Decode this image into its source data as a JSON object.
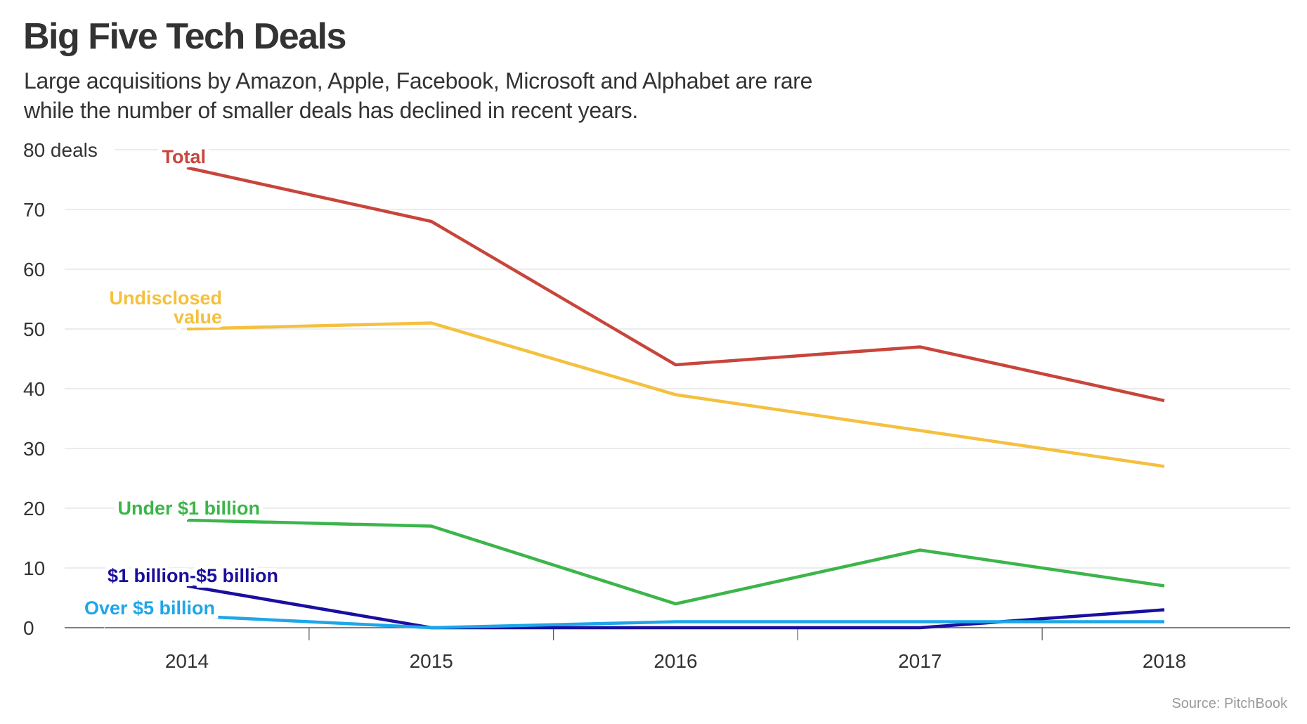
{
  "header": {
    "title": "Big Five Tech Deals",
    "subtitle_lines": [
      "Large acquisitions by Amazon, Apple, Facebook, Microsoft and Alphabet are rare",
      "while the number of smaller deals has declined in recent years."
    ]
  },
  "footer": {
    "source": "Source: PitchBook"
  },
  "chart_data": {
    "type": "line",
    "title": "Big Five Tech Deals",
    "subtitle": "Large acquisitions by Amazon, Apple, Facebook, Microsoft and Alphabet are rare while the number of smaller deals has declined in recent years.",
    "xlabel": "",
    "ylabel": "deals",
    "x": [
      "2014",
      "2015",
      "2016",
      "2017",
      "2018"
    ],
    "ylim": [
      0,
      80
    ],
    "yticks": [
      0,
      10,
      20,
      30,
      40,
      50,
      60,
      70,
      80
    ],
    "ytick_labels": [
      "0",
      "10",
      "20",
      "30",
      "40",
      "50",
      "60",
      "70",
      "80 deals"
    ],
    "grid": true,
    "legend": "inline labels at start of each line",
    "series": [
      {
        "name": "Total",
        "label_lines": [
          "Total"
        ],
        "color": "#c8453b",
        "values": [
          77,
          68,
          44,
          47,
          38
        ]
      },
      {
        "name": "Undisclosed value",
        "label_lines": [
          "Undisclosed",
          "value"
        ],
        "color": "#f4c03f",
        "values": [
          50,
          51,
          39,
          33,
          27
        ]
      },
      {
        "name": "Under $1 billion",
        "label_lines": [
          "Under $1 billion"
        ],
        "color": "#3cb54a",
        "values": [
          18,
          17,
          4,
          13,
          7
        ]
      },
      {
        "name": "$1 billion-$5 billion",
        "label_lines": [
          "$1 billion-$5 billion"
        ],
        "color": "#1a0f9e",
        "values": [
          7,
          0,
          0,
          0,
          3
        ]
      },
      {
        "name": "Over $5 billion",
        "label_lines": [
          "Over $5 billion"
        ],
        "color": "#1ea6e8",
        "values": [
          2,
          0,
          1,
          1,
          1
        ]
      }
    ],
    "source": "Source: PitchBook"
  }
}
